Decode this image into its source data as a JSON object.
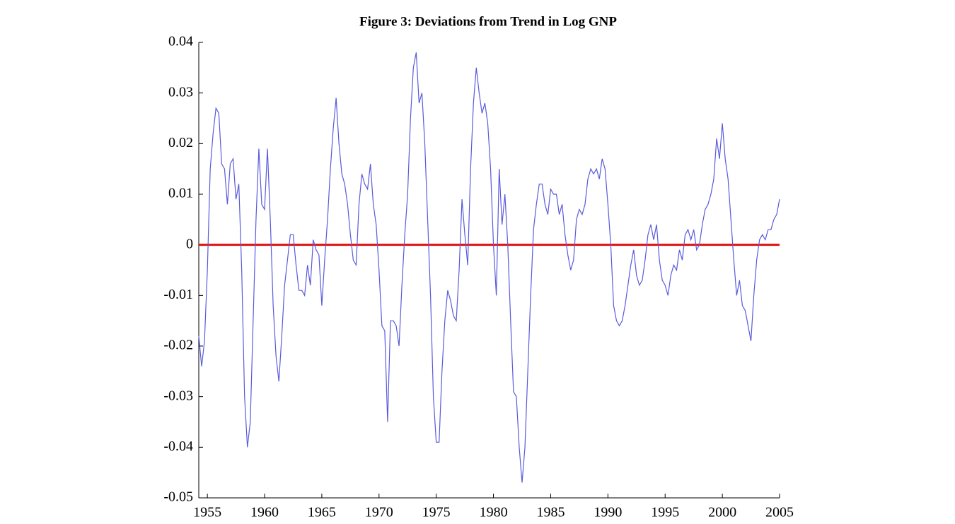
{
  "chart_data": {
    "type": "line",
    "title": "Figure 3: Deviations from Trend in Log GNP",
    "x": [
      1954.25,
      1954.5,
      1954.75,
      1955,
      1955.25,
      1955.5,
      1955.75,
      1956,
      1956.25,
      1956.5,
      1956.75,
      1957,
      1957.25,
      1957.5,
      1957.75,
      1958,
      1958.25,
      1958.5,
      1958.75,
      1959,
      1959.25,
      1959.5,
      1959.75,
      1960,
      1960.25,
      1960.5,
      1960.75,
      1961,
      1961.25,
      1961.5,
      1961.75,
      1962,
      1962.25,
      1962.5,
      1962.75,
      1963,
      1963.25,
      1963.5,
      1963.75,
      1964,
      1964.25,
      1964.5,
      1964.75,
      1965,
      1965.25,
      1965.5,
      1965.75,
      1966,
      1966.25,
      1966.5,
      1966.75,
      1967,
      1967.25,
      1967.5,
      1967.75,
      1968,
      1968.25,
      1968.5,
      1968.75,
      1969,
      1969.25,
      1969.5,
      1969.75,
      1970,
      1970.25,
      1970.5,
      1970.75,
      1971,
      1971.25,
      1971.5,
      1971.75,
      1972,
      1972.25,
      1972.5,
      1972.75,
      1973,
      1973.25,
      1973.5,
      1973.75,
      1974,
      1974.25,
      1974.5,
      1974.75,
      1975,
      1975.25,
      1975.5,
      1975.75,
      1976,
      1976.25,
      1976.5,
      1976.75,
      1977,
      1977.25,
      1977.5,
      1977.75,
      1978,
      1978.25,
      1978.5,
      1978.75,
      1979,
      1979.25,
      1979.5,
      1979.75,
      1980,
      1980.25,
      1980.5,
      1980.75,
      1981,
      1981.25,
      1981.5,
      1981.75,
      1982,
      1982.25,
      1982.5,
      1982.75,
      1983,
      1983.25,
      1983.5,
      1983.75,
      1984,
      1984.25,
      1984.5,
      1984.75,
      1985,
      1985.25,
      1985.5,
      1985.75,
      1986,
      1986.25,
      1986.5,
      1986.75,
      1987,
      1987.25,
      1987.5,
      1987.75,
      1988,
      1988.25,
      1988.5,
      1988.75,
      1989,
      1989.25,
      1989.5,
      1989.75,
      1990,
      1990.25,
      1990.5,
      1990.75,
      1991,
      1991.25,
      1991.5,
      1991.75,
      1992,
      1992.25,
      1992.5,
      1992.75,
      1993,
      1993.25,
      1993.5,
      1993.75,
      1994,
      1994.25,
      1994.5,
      1994.75,
      1995,
      1995.25,
      1995.5,
      1995.75,
      1996,
      1996.25,
      1996.5,
      1996.75,
      1997,
      1997.25,
      1997.5,
      1997.75,
      1998,
      1998.25,
      1998.5,
      1998.75,
      1999,
      1999.25,
      1999.5,
      1999.75,
      2000,
      2000.25,
      2000.5,
      2000.75,
      2001,
      2001.25,
      2001.5,
      2001.75,
      2002,
      2002.25,
      2002.5,
      2002.75,
      2003,
      2003.25,
      2003.5,
      2003.75,
      2004,
      2004.25,
      2004.5,
      2004.75,
      2005
    ],
    "values": [
      -0.018,
      -0.024,
      -0.019,
      -0.005,
      0.015,
      0.022,
      0.027,
      0.026,
      0.016,
      0.015,
      0.008,
      0.016,
      0.017,
      0.009,
      0.012,
      -0.005,
      -0.03,
      -0.04,
      -0.035,
      -0.015,
      0.005,
      0.019,
      0.008,
      0.007,
      0.019,
      0.005,
      -0.012,
      -0.022,
      -0.027,
      -0.018,
      -0.008,
      -0.003,
      0.002,
      0.002,
      -0.004,
      -0.009,
      -0.009,
      -0.01,
      -0.004,
      -0.008,
      0.001,
      -0.001,
      -0.002,
      -0.012,
      -0.003,
      0.005,
      0.015,
      0.023,
      0.029,
      0.02,
      0.014,
      0.012,
      0.008,
      0.002,
      -0.003,
      -0.004,
      0.008,
      0.014,
      0.012,
      0.011,
      0.016,
      0.008,
      0.004,
      -0.005,
      -0.016,
      -0.017,
      -0.035,
      -0.015,
      -0.015,
      -0.016,
      -0.02,
      -0.008,
      0.002,
      0.01,
      0.025,
      0.035,
      0.038,
      0.028,
      0.03,
      0.02,
      0.005,
      -0.01,
      -0.03,
      -0.039,
      -0.039,
      -0.025,
      -0.015,
      -0.009,
      -0.011,
      -0.014,
      -0.015,
      -0.005,
      0.009,
      0.002,
      -0.004,
      0.015,
      0.028,
      0.035,
      0.03,
      0.026,
      0.028,
      0.024,
      0.015,
      0.0,
      -0.01,
      0.015,
      0.004,
      0.01,
      0.0,
      -0.015,
      -0.029,
      -0.03,
      -0.04,
      -0.047,
      -0.04,
      -0.025,
      -0.01,
      0.003,
      0.008,
      0.012,
      0.012,
      0.008,
      0.006,
      0.011,
      0.01,
      0.01,
      0.006,
      0.008,
      0.002,
      -0.002,
      -0.005,
      -0.003,
      0.005,
      0.007,
      0.006,
      0.008,
      0.013,
      0.015,
      0.014,
      0.015,
      0.013,
      0.017,
      0.015,
      0.008,
      0.0,
      -0.012,
      -0.015,
      -0.016,
      -0.015,
      -0.012,
      -0.008,
      -0.004,
      -0.001,
      -0.006,
      -0.008,
      -0.007,
      -0.003,
      0.002,
      0.004,
      0.001,
      0.004,
      -0.003,
      -0.007,
      -0.008,
      -0.01,
      -0.006,
      -0.004,
      -0.005,
      -0.001,
      -0.003,
      0.002,
      0.003,
      0.001,
      0.003,
      -0.001,
      0.0,
      0.004,
      0.007,
      0.008,
      0.01,
      0.013,
      0.021,
      0.017,
      0.024,
      0.017,
      0.013,
      0.005,
      -0.003,
      -0.01,
      -0.007,
      -0.012,
      -0.013,
      -0.016,
      -0.019,
      -0.01,
      -0.003,
      0.001,
      0.002,
      0.001,
      0.003,
      0.003,
      0.005,
      0.006,
      0.009
    ],
    "color": "#5a5adc",
    "hline": {
      "value": 0,
      "color": "#e01010"
    },
    "xlim": [
      1954.25,
      2005
    ],
    "xticks": [
      1955,
      1960,
      1965,
      1970,
      1975,
      1980,
      1985,
      1990,
      1995,
      2000,
      2005
    ],
    "ylim": [
      -0.05,
      0.04
    ],
    "yticks": [
      0.04,
      0.03,
      0.02,
      0.01,
      0,
      -0.01,
      -0.02,
      -0.03,
      -0.04,
      -0.05
    ]
  }
}
